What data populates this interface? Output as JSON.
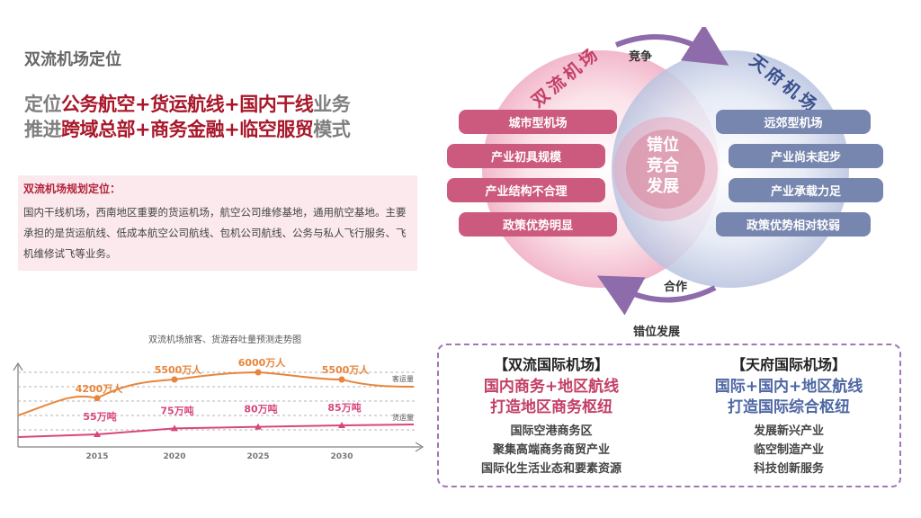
{
  "page_title": "双流机场定位",
  "headline1": {
    "prefix": "定位",
    "p1": "公务航空",
    "s1": "+",
    "p2": "货运航线",
    "s2": "+",
    "p3": "国内干线",
    "suffix": "业务"
  },
  "headline2": {
    "prefix": "推进",
    "p1": "跨域总部",
    "s1": "+",
    "p2": "商务金融",
    "s2": "+",
    "p3": "临空服贸",
    "suffix": "模式"
  },
  "plan_box": {
    "title": "双流机场规划定位：",
    "body": "国内干线机场，西南地区重要的货运机场，航空公司维修基地，通用航空基地。主要承担的是货运航线、低成本航空公司航线、包机公司航线、公务与私人飞行服务、飞机维修试飞等业务。"
  },
  "chart_data": {
    "type": "line",
    "title": "双流机场旅客、货游吞吐量预测走势图",
    "x": [
      "2015",
      "2020",
      "2025",
      "2030"
    ],
    "series": [
      {
        "name": "客运量",
        "values": [
          4200,
          5500,
          6000,
          5500
        ],
        "labels": [
          "4200万人",
          "5500万人",
          "6000万人",
          "5500万人"
        ],
        "color": "#e8853b"
      },
      {
        "name": "货运量",
        "values": [
          55,
          75,
          80,
          85
        ],
        "labels": [
          "55万吨",
          "75万吨",
          "80万吨",
          "85万吨"
        ],
        "color": "#d8467d"
      }
    ],
    "grid": true
  },
  "venn": {
    "left_title": "双流机场",
    "right_title": "天府机场",
    "top_verb": "竞争",
    "bottom_verb": "合作",
    "center": [
      "错位",
      "竞合",
      "发展"
    ],
    "left_items": [
      "城市型机场",
      "产业初具规模",
      "产业结构不合理",
      "政策优势明显"
    ],
    "right_items": [
      "远郊型机场",
      "产业尚未起步",
      "产业承载力足",
      "政策优势相对较弱"
    ],
    "colors": {
      "pink": "#cc5a7e",
      "blue": "#7786ae",
      "arrow": "#8e6bab"
    }
  },
  "bottom": {
    "label": "错位发展",
    "left": {
      "title": "【双流国际机场】",
      "lines": [
        "国内商务+地区航线",
        "打造地区商务枢纽"
      ],
      "items": [
        "国际空港商务区",
        "聚集高端商务商贸产业",
        "国际化生活业态和要素资源"
      ]
    },
    "right": {
      "title": "【天府国际机场】",
      "lines": [
        "国际+国内+地区航线",
        "打造国际综合枢纽"
      ],
      "items": [
        "发展新兴产业",
        "临空制造产业",
        "科技创新服务"
      ]
    }
  }
}
